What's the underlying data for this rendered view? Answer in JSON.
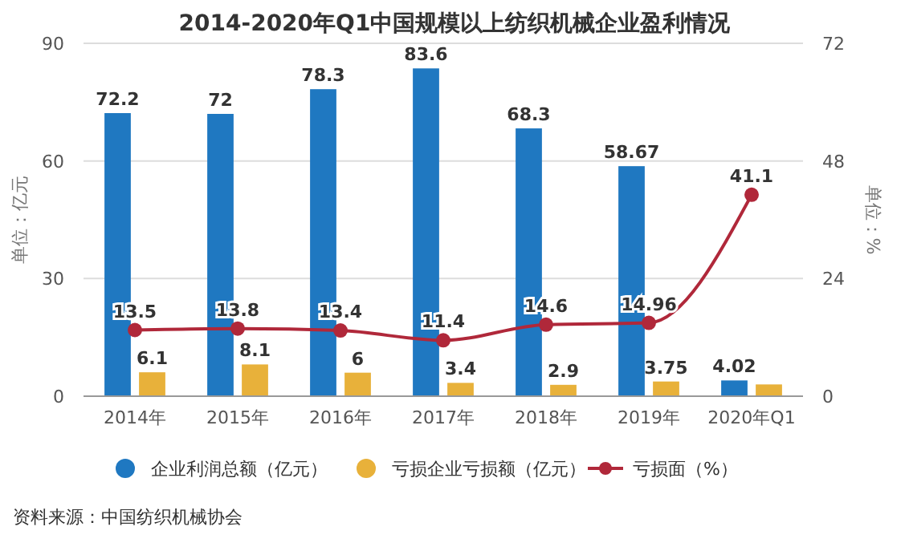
{
  "chart_data": {
    "type": "bar",
    "title": "2014-2020年Q1中国规模以上纺织机械企业盈利情况",
    "categories": [
      "2014年",
      "2015年",
      "2016年",
      "2017年",
      "2018年",
      "2019年",
      "2020年Q1"
    ],
    "series": [
      {
        "name": "企业利润总额（亿元）",
        "color": "#1f78c1",
        "values": [
          72.2,
          72,
          78.3,
          83.6,
          68.3,
          58.67,
          4.02
        ],
        "value_labels": [
          "72.2",
          "72",
          "78.3",
          "83.6",
          "68.3",
          "58.67",
          "4.02"
        ]
      },
      {
        "name": "亏损企业亏损额（亿元）",
        "color": "#e8b13a",
        "values": [
          6.1,
          8.1,
          6,
          3.4,
          2.9,
          3.75,
          3.0
        ],
        "value_labels": [
          "6.1",
          "8.1",
          "6",
          "3.4",
          "2.9",
          "3.75",
          null
        ]
      },
      {
        "name": "亏损面（%）",
        "type": "line",
        "axis": "y2",
        "color": "#b0283a",
        "values": [
          13.5,
          13.8,
          13.4,
          11.4,
          14.6,
          14.96,
          41.1
        ],
        "value_labels": [
          "13.5",
          "13.8",
          "13.4",
          "11.4",
          "14.6",
          "14.96",
          "41.1"
        ]
      }
    ],
    "ylim": [
      0,
      90
    ],
    "yticks": [
      0,
      30,
      60,
      90
    ],
    "y2lim": [
      0,
      72
    ],
    "y2ticks": [
      0,
      24,
      48,
      72
    ],
    "ylabel": "单位：亿元",
    "y2label": "单位：%",
    "grid": "y",
    "legend": "bottom",
    "marker": "circle",
    "line_style": "solid",
    "annotations": [
      "资料来源：中国纺织机械协会"
    ]
  }
}
